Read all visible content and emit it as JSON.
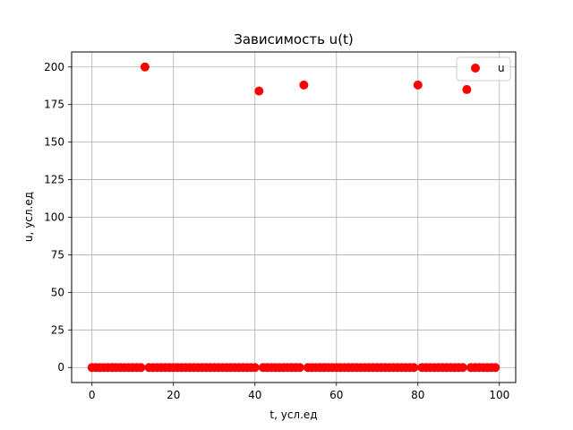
{
  "chart_data": {
    "type": "scatter",
    "title": "Зависимость u(t)",
    "xlabel": "t, усл.ед",
    "ylabel": "u, усл.ед",
    "xlim": [
      -5,
      104
    ],
    "ylim": [
      -10,
      210
    ],
    "xticks": [
      0,
      20,
      40,
      60,
      80,
      100
    ],
    "yticks": [
      0,
      25,
      50,
      75,
      100,
      125,
      150,
      175,
      200
    ],
    "grid": true,
    "legend_position": "top-right",
    "series": [
      {
        "name": "u",
        "color": "#ff0000",
        "marker": "circle",
        "x": [
          0,
          1,
          2,
          3,
          4,
          5,
          6,
          7,
          8,
          9,
          10,
          11,
          12,
          13,
          14,
          15,
          16,
          17,
          18,
          19,
          20,
          21,
          22,
          23,
          24,
          25,
          26,
          27,
          28,
          29,
          30,
          31,
          32,
          33,
          34,
          35,
          36,
          37,
          38,
          39,
          40,
          41,
          42,
          43,
          44,
          45,
          46,
          47,
          48,
          49,
          50,
          51,
          52,
          53,
          54,
          55,
          56,
          57,
          58,
          59,
          60,
          61,
          62,
          63,
          64,
          65,
          66,
          67,
          68,
          69,
          70,
          71,
          72,
          73,
          74,
          75,
          76,
          77,
          78,
          79,
          80,
          81,
          82,
          83,
          84,
          85,
          86,
          87,
          88,
          89,
          90,
          91,
          92,
          93,
          94,
          95,
          96,
          97,
          98,
          99
        ],
        "y": [
          0,
          0,
          0,
          0,
          0,
          0,
          0,
          0,
          0,
          0,
          0,
          0,
          0,
          200,
          0,
          0,
          0,
          0,
          0,
          0,
          0,
          0,
          0,
          0,
          0,
          0,
          0,
          0,
          0,
          0,
          0,
          0,
          0,
          0,
          0,
          0,
          0,
          0,
          0,
          0,
          0,
          184,
          0,
          0,
          0,
          0,
          0,
          0,
          0,
          0,
          0,
          0,
          188,
          0,
          0,
          0,
          0,
          0,
          0,
          0,
          0,
          0,
          0,
          0,
          0,
          0,
          0,
          0,
          0,
          0,
          0,
          0,
          0,
          0,
          0,
          0,
          0,
          0,
          0,
          0,
          188,
          0,
          0,
          0,
          0,
          0,
          0,
          0,
          0,
          0,
          0,
          0,
          185,
          0,
          0,
          0,
          0,
          0,
          0,
          0
        ]
      }
    ]
  }
}
